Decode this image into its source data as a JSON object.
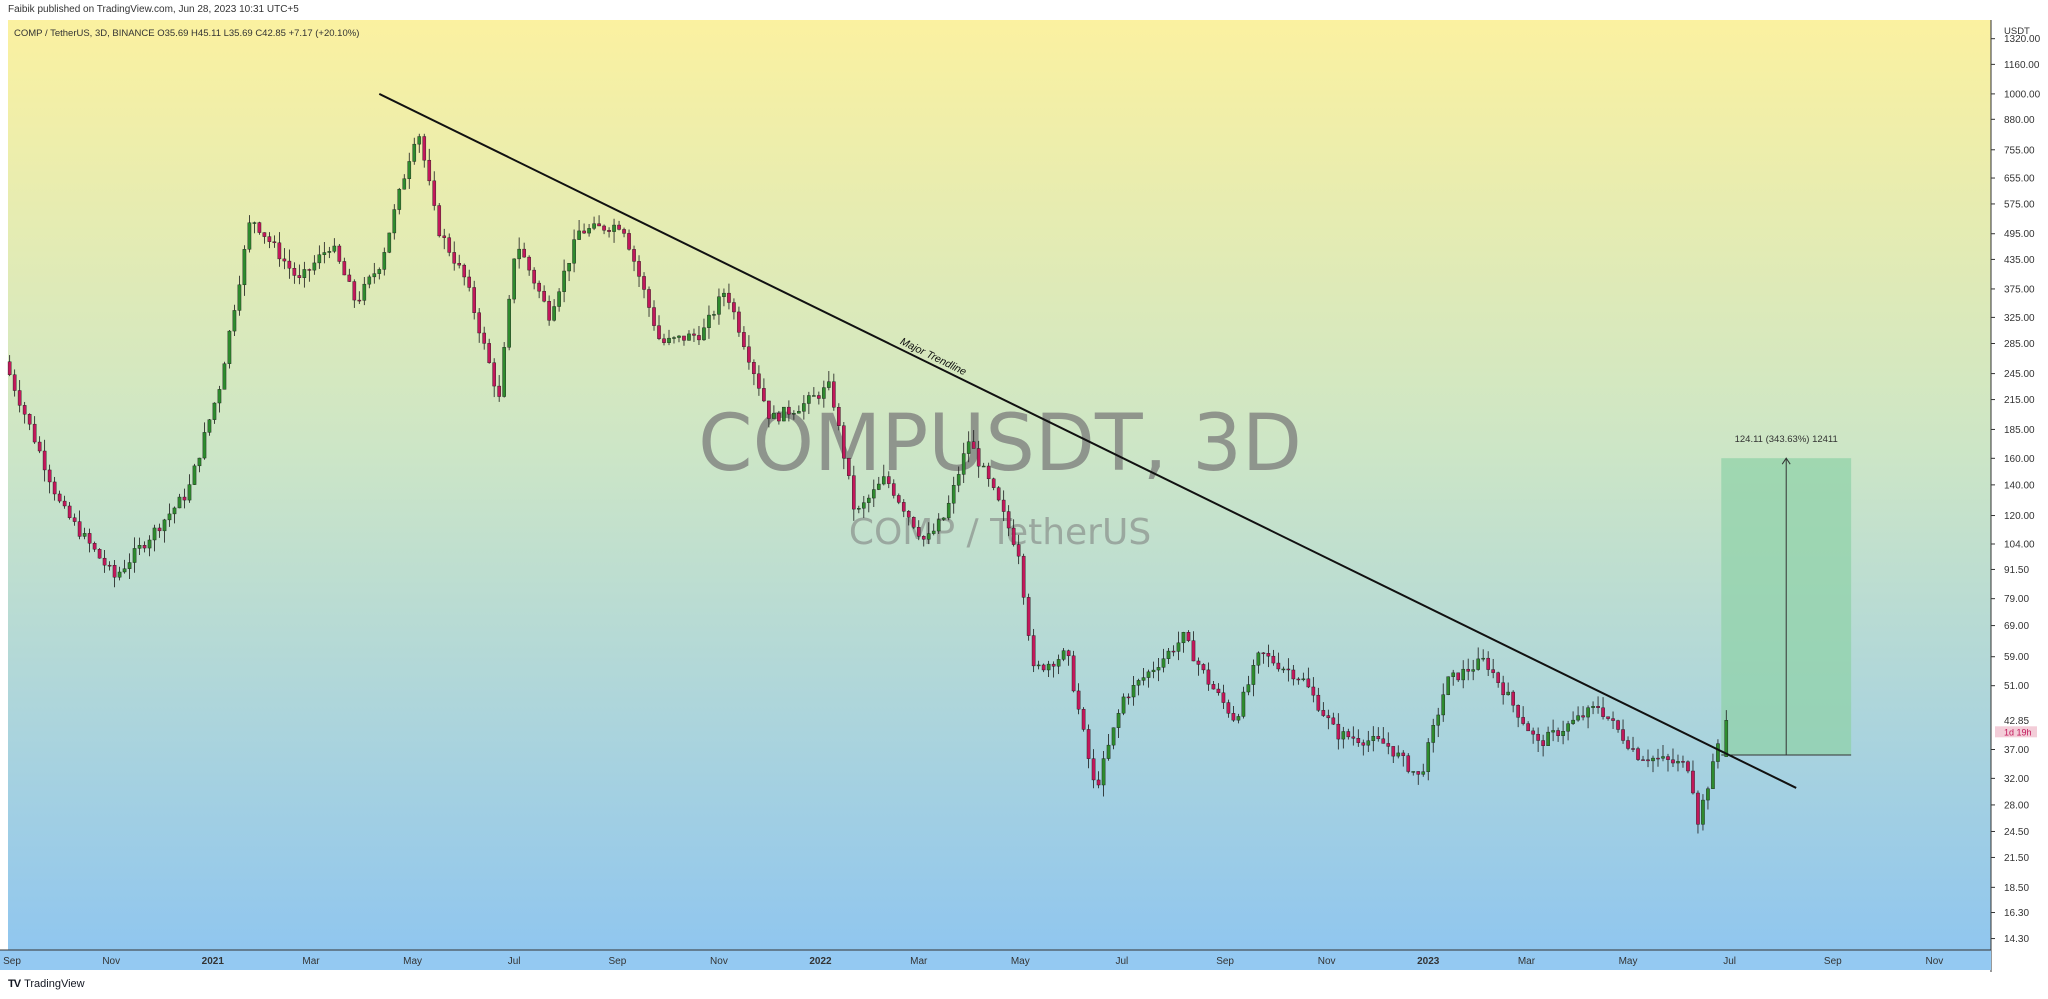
{
  "header": {
    "published_line": "Faibik published on TradingView.com, Jun 28, 2023 10:31 UTC+5",
    "symbol_line": "COMP / TetherUS, 3D, BINANCE  O35.69  H45.11  L35.69  C42.85  +7.17 (+20.10%)"
  },
  "watermark": {
    "main": "COMPUSDT, 3D",
    "sub": "COMP / TetherUS"
  },
  "price_scale": {
    "currency": "USDT",
    "ticks": [
      "1320.00",
      "1160.00",
      "1000.00",
      "880.00",
      "755.00",
      "655.00",
      "575.00",
      "495.00",
      "435.00",
      "375.00",
      "325.00",
      "285.00",
      "245.00",
      "215.00",
      "185.00",
      "160.00",
      "140.00",
      "120.00",
      "104.00",
      "91.50",
      "79.00",
      "69.00",
      "59.00",
      "51.00",
      "42.85",
      "37.00",
      "32.00",
      "28.00",
      "24.50",
      "21.50",
      "18.50",
      "16.30",
      "14.30"
    ],
    "last_price": "42.85",
    "countdown": "1d 19h"
  },
  "time_scale": {
    "ticks": [
      "Sep",
      "Nov",
      "2021",
      "Mar",
      "May",
      "Jul",
      "Sep",
      "Nov",
      "2022",
      "Mar",
      "May",
      "Jul",
      "Sep",
      "Nov",
      "2023",
      "Mar",
      "May",
      "Jul",
      "Sep",
      "Nov"
    ],
    "bold": [
      "2021",
      "2022",
      "2023"
    ]
  },
  "annotations": {
    "trendline_label": "Major Trendline",
    "measure_label": "124.11 (343.63%) 12411"
  },
  "footer": {
    "brand": "TradingView",
    "logo": "tradingview-logo"
  },
  "colors": {
    "up": "#2e8b2e",
    "down": "#c2185b",
    "bg_top": "#fbf1a0",
    "bg_bottom": "#8ec5f0",
    "measure_fill": "#8fd1a8"
  },
  "chart_data": {
    "type": "candlestick",
    "title": "COMPUSDT, 3D",
    "symbol": "COMP / TetherUS",
    "exchange": "BINANCE",
    "interval": "3D",
    "y_scale": "log",
    "ylim": [
      13.5,
      1450
    ],
    "xlim": [
      "2020-08-31",
      "2023-12-05"
    ],
    "last_bar": {
      "open": 35.69,
      "high": 45.11,
      "low": 35.69,
      "close": 42.85,
      "change": 7.17,
      "change_pct": 20.1
    },
    "trendline": {
      "label": "Major Trendline",
      "start": {
        "date": "2021-04-11",
        "price": 1000
      },
      "end": {
        "date": "2023-08-10",
        "price": 30.5
      }
    },
    "measure": {
      "label": "124.11 (343.63%) 12411",
      "from_price": 36.0,
      "to_price": 160.1,
      "date_start": "2023-06-26",
      "date_end": "2023-09-12"
    },
    "ohlc_swings": [
      {
        "date": "2020-09-01",
        "price": 260
      },
      {
        "date": "2020-10-05",
        "price": 125
      },
      {
        "date": "2020-11-06",
        "price": 88
      },
      {
        "date": "2020-12-20",
        "price": 135
      },
      {
        "date": "2021-01-08",
        "price": 230
      },
      {
        "date": "2021-01-27",
        "price": 540
      },
      {
        "date": "2021-02-25",
        "price": 390
      },
      {
        "date": "2021-03-16",
        "price": 470
      },
      {
        "date": "2021-03-31",
        "price": 350
      },
      {
        "date": "2021-04-15",
        "price": 430
      },
      {
        "date": "2021-05-07",
        "price": 850
      },
      {
        "date": "2021-05-19",
        "price": 510
      },
      {
        "date": "2021-06-05",
        "price": 390
      },
      {
        "date": "2021-06-25",
        "price": 215
      },
      {
        "date": "2021-07-05",
        "price": 480
      },
      {
        "date": "2021-07-25",
        "price": 330
      },
      {
        "date": "2021-08-12",
        "price": 500
      },
      {
        "date": "2021-09-07",
        "price": 520
      },
      {
        "date": "2021-09-30",
        "price": 285
      },
      {
        "date": "2021-10-25",
        "price": 300
      },
      {
        "date": "2021-11-08",
        "price": 375
      },
      {
        "date": "2021-12-05",
        "price": 195
      },
      {
        "date": "2021-12-25",
        "price": 210
      },
      {
        "date": "2022-01-10",
        "price": 230
      },
      {
        "date": "2022-01-25",
        "price": 120
      },
      {
        "date": "2022-02-12",
        "price": 145
      },
      {
        "date": "2022-03-08",
        "price": 105
      },
      {
        "date": "2022-03-20",
        "price": 120
      },
      {
        "date": "2022-04-03",
        "price": 175
      },
      {
        "date": "2022-04-20",
        "price": 130
      },
      {
        "date": "2022-05-03",
        "price": 100
      },
      {
        "date": "2022-05-12",
        "price": 55
      },
      {
        "date": "2022-06-01",
        "price": 60
      },
      {
        "date": "2022-06-18",
        "price": 30
      },
      {
        "date": "2022-07-05",
        "price": 48
      },
      {
        "date": "2022-08-10",
        "price": 65
      },
      {
        "date": "2022-08-25",
        "price": 52
      },
      {
        "date": "2022-09-10",
        "price": 43
      },
      {
        "date": "2022-09-25",
        "price": 60
      },
      {
        "date": "2022-10-20",
        "price": 53
      },
      {
        "date": "2022-11-10",
        "price": 40
      },
      {
        "date": "2022-12-10",
        "price": 38
      },
      {
        "date": "2022-12-30",
        "price": 32
      },
      {
        "date": "2023-01-15",
        "price": 52
      },
      {
        "date": "2023-02-07",
        "price": 58
      },
      {
        "date": "2023-03-11",
        "price": 38
      },
      {
        "date": "2023-04-16",
        "price": 46
      },
      {
        "date": "2023-05-10",
        "price": 36
      },
      {
        "date": "2023-06-10",
        "price": 34
      },
      {
        "date": "2023-06-15",
        "price": 26
      },
      {
        "date": "2023-06-26",
        "price": 36
      },
      {
        "date": "2023-06-29",
        "price": 42.85
      }
    ]
  }
}
